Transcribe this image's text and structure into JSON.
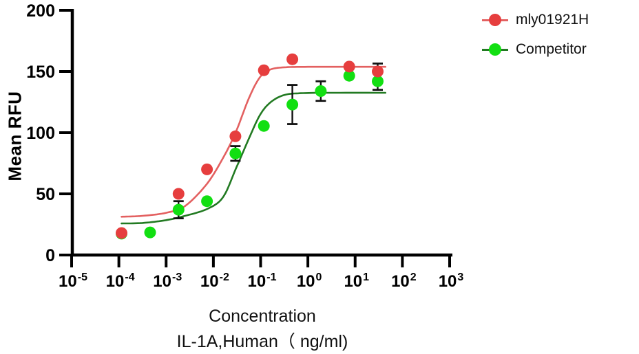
{
  "axes": {
    "y_label": "Mean RFU",
    "x_label_line1": "Concentration",
    "x_label_line2": "IL-1A,Human（ ng/ml)",
    "y_ticks": [
      0,
      50,
      100,
      150,
      200
    ],
    "x_tick_base": "10",
    "x_tick_exponents": [
      -5,
      -4,
      -3,
      -2,
      -1,
      0,
      1,
      2,
      3
    ]
  },
  "legend": {
    "items": [
      {
        "label": "mly01921H"
      },
      {
        "label": "Competitor"
      }
    ]
  },
  "chart_data": {
    "type": "scatter",
    "subtype": "dose-response 4PL fit, log-x",
    "title": "",
    "xlabel": "Concentration IL-1A,Human (ng/ml)",
    "ylabel": "Mean RFU",
    "x_scale": "log10",
    "xlim_log10": [
      -5,
      3
    ],
    "ylim": [
      0,
      200
    ],
    "grid": false,
    "legend_position": "right-top",
    "series": [
      {
        "name": "mly01921H",
        "marker_color": "#e63e3e",
        "curve_color": "#e36060",
        "points": [
          {
            "c": 0.000114,
            "v": 18
          },
          {
            "c": 0.00183,
            "v": 50
          },
          {
            "c": 0.00732,
            "v": 70
          },
          {
            "c": 0.0293,
            "v": 97
          },
          {
            "c": 0.117,
            "v": 151
          },
          {
            "c": 0.469,
            "v": 160
          },
          {
            "c": 7.5,
            "v": 154
          },
          {
            "c": 30,
            "v": 150,
            "e": 6.5
          }
        ],
        "curve_anchors_log10x_value": [
          [
            -3.943,
            31.3
          ],
          [
            -3.5,
            32.0
          ],
          [
            -3.0,
            34.5
          ],
          [
            -2.6,
            40.0
          ],
          [
            -2.14,
            58.0
          ],
          [
            -1.8,
            79.0
          ],
          [
            -1.53,
            100.0
          ],
          [
            -1.25,
            128.0
          ],
          [
            -1.02,
            145.0
          ],
          [
            -0.8,
            151.5
          ],
          [
            -0.5,
            153.4
          ],
          [
            0.0,
            153.8
          ],
          [
            0.8,
            153.8
          ],
          [
            1.64,
            153.8
          ]
        ]
      },
      {
        "name": "Competitor",
        "marker_color": "#12df12",
        "curve_color": "#227a22",
        "points": [
          {
            "c": 0.000114,
            "v": 17.5
          },
          {
            "c": 0.000458,
            "v": 18.5
          },
          {
            "c": 0.00183,
            "v": 37,
            "e": 7
          },
          {
            "c": 0.00732,
            "v": 44
          },
          {
            "c": 0.0293,
            "v": 83,
            "e": 6
          },
          {
            "c": 0.117,
            "v": 105.5
          },
          {
            "c": 0.469,
            "v": 123,
            "e": 16
          },
          {
            "c": 1.875,
            "v": 134,
            "e": 8
          },
          {
            "c": 7.5,
            "v": 146.5
          },
          {
            "c": 30,
            "v": 142,
            "e": 7
          }
        ],
        "curve_anchors_log10x_value": [
          [
            -3.943,
            25.8
          ],
          [
            -3.5,
            26.2
          ],
          [
            -3.0,
            28.5
          ],
          [
            -2.6,
            32.0
          ],
          [
            -2.14,
            37.5
          ],
          [
            -1.8,
            47.0
          ],
          [
            -1.53,
            70.0
          ],
          [
            -1.25,
            95.0
          ],
          [
            -1.02,
            114.0
          ],
          [
            -0.8,
            124.5
          ],
          [
            -0.5,
            130.8
          ],
          [
            -0.1,
            132.3
          ],
          [
            0.6,
            132.6
          ],
          [
            1.64,
            132.6
          ]
        ]
      }
    ],
    "style": {
      "axis_color": "#000000",
      "error_bar_color": "#111111",
      "marker_radius": 8.5,
      "curve_width": 2.6
    }
  }
}
